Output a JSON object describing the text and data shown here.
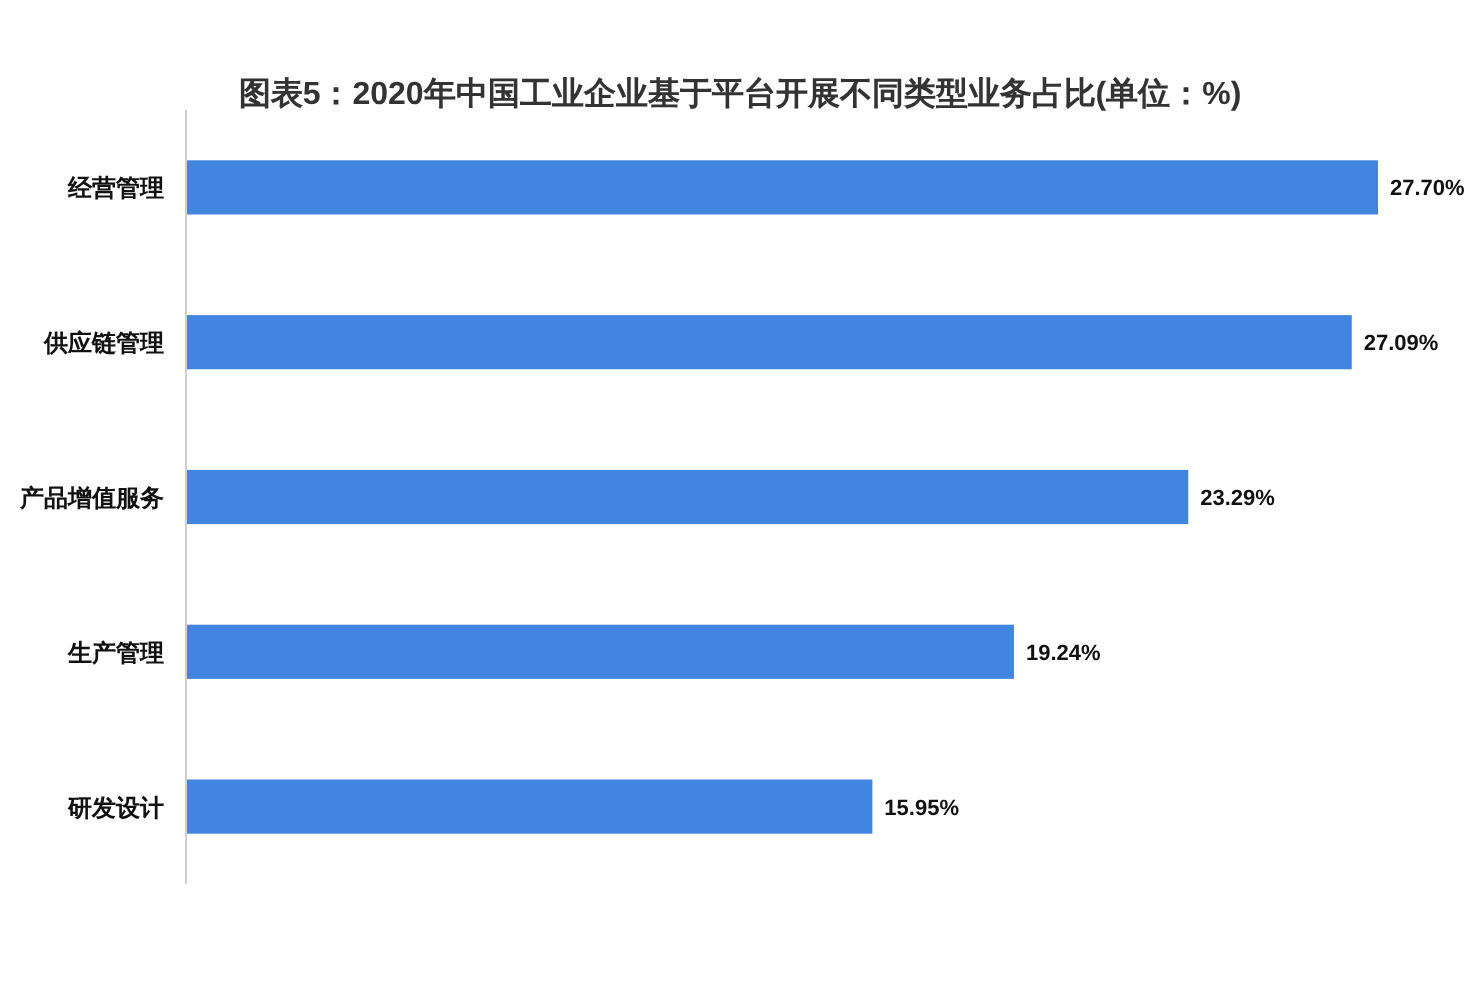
{
  "chart_data": {
    "type": "bar",
    "orientation": "horizontal",
    "title": "图表5：2020年中国工业企业基于平台开展不同类型业务占比(单位：%)",
    "categories": [
      "经营管理",
      "供应链管理",
      "产品增值服务",
      "生产管理",
      "研发设计"
    ],
    "values": [
      27.7,
      27.09,
      23.29,
      19.24,
      15.95
    ],
    "value_labels": [
      "27.70%",
      "27.09%",
      "23.29%",
      "19.24%",
      "15.95%"
    ],
    "color": "#4285e0"
  }
}
